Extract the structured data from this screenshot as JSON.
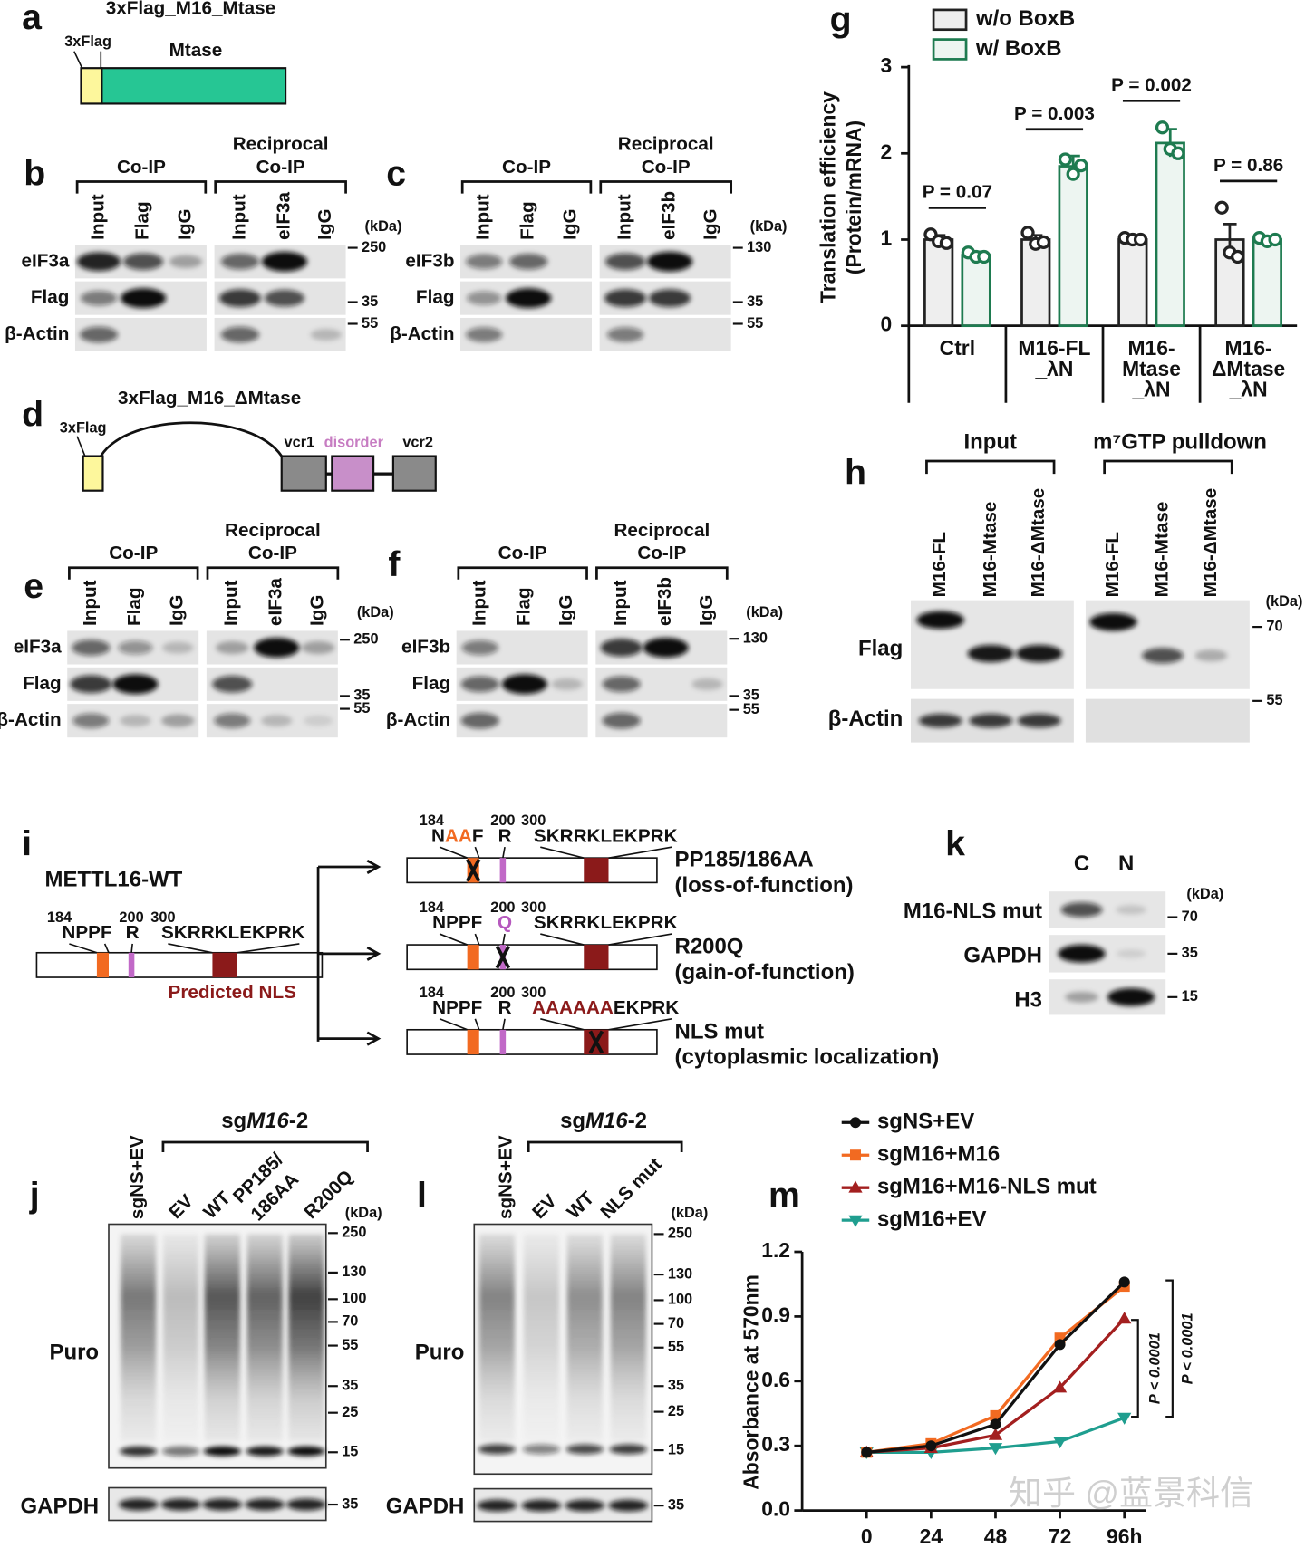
{
  "panel_labels": [
    "a",
    "b",
    "c",
    "d",
    "e",
    "f",
    "g",
    "h",
    "i",
    "j",
    "k",
    "l",
    "m"
  ],
  "panels": {
    "a": {
      "title": "3xFlag_M16_Mtase",
      "tag": "3xFlag",
      "domain": "Mtase"
    },
    "b": {
      "groups": [
        {
          "label": [
            "Co-IP"
          ],
          "lanes": [
            "Input",
            "Flag",
            "IgG"
          ]
        },
        {
          "label": [
            "Reciprocal",
            "Co-IP"
          ],
          "lanes": [
            "Input",
            "eIF3a",
            "IgG"
          ]
        }
      ],
      "rows": [
        "eIF3a",
        "Flag",
        "β-Actin"
      ],
      "unit": "(kDa)",
      "markers": [
        "250",
        "35",
        "55"
      ]
    },
    "c": {
      "groups": [
        {
          "label": [
            "Co-IP"
          ],
          "lanes": [
            "Input",
            "Flag",
            "IgG"
          ]
        },
        {
          "label": [
            "Reciprocal",
            "Co-IP"
          ],
          "lanes": [
            "Input",
            "eIF3b",
            "IgG"
          ]
        }
      ],
      "rows": [
        "eIF3b",
        "Flag",
        "β-Actin"
      ],
      "unit": "(kDa)",
      "markers": [
        "130",
        "35",
        "55"
      ]
    },
    "d": {
      "title": "3xFlag_M16_ΔMtase",
      "tag": "3xFlag",
      "domains": [
        "vcr1",
        "disorder",
        "vcr2"
      ]
    },
    "e": {
      "groups": [
        {
          "label": [
            "Co-IP"
          ],
          "lanes": [
            "Input",
            "Flag",
            "IgG"
          ]
        },
        {
          "label": [
            "Reciprocal",
            "Co-IP"
          ],
          "lanes": [
            "Input",
            "eIF3a",
            "IgG"
          ]
        }
      ],
      "rows": [
        "eIF3a",
        "Flag",
        "β-Actin"
      ],
      "unit": "(kDa)",
      "markers": [
        "250",
        "35",
        "55"
      ]
    },
    "f": {
      "groups": [
        {
          "label": [
            "Co-IP"
          ],
          "lanes": [
            "Input",
            "Flag",
            "IgG"
          ]
        },
        {
          "label": [
            "Reciprocal",
            "Co-IP"
          ],
          "lanes": [
            "Input",
            "eIF3b",
            "IgG"
          ]
        }
      ],
      "rows": [
        "eIF3b",
        "Flag",
        "β-Actin"
      ],
      "unit": "(kDa)",
      "markers": [
        "130",
        "35",
        "55"
      ]
    },
    "h": {
      "groups": [
        {
          "label": [
            "Input"
          ],
          "lanes": [
            "M16-FL",
            "M16-Mtase",
            "M16-ΔMtase"
          ]
        },
        {
          "label": [
            "m⁷GTP pulldown"
          ],
          "lanes": [
            "M16-FL",
            "M16-Mtase",
            "M16-ΔMtase"
          ]
        }
      ],
      "rows": [
        "Flag",
        "β-Actin"
      ],
      "unit": "(kDa)",
      "markers": [
        "70",
        "55"
      ]
    },
    "i": {
      "title": "METTL16-WT",
      "positions": [
        "184",
        "200",
        "300"
      ],
      "motifs": [
        [
          "NPPF"
        ],
        [
          "R"
        ],
        [
          "SKRRKLEKPRK"
        ]
      ],
      "nls": "Predicted NLS",
      "mutants": [
        {
          "positions": [
            "184",
            "200",
            "300"
          ],
          "motifs": [
            [
              "N",
              "AA",
              "F"
            ],
            [
              "R"
            ],
            [
              "SKRRKLEKPRK"
            ]
          ],
          "name": "PP185/186AA",
          "effect": "(loss-of-function)"
        },
        {
          "positions": [
            "184",
            "200",
            "300"
          ],
          "motifs": [
            [
              "NPPF"
            ],
            [
              "Q"
            ],
            [
              "SKRRKLEKPRK"
            ]
          ],
          "name": "R200Q",
          "effect": "(gain-of-function)"
        },
        {
          "positions": [
            "184",
            "200",
            "300"
          ],
          "motifs": [
            [
              "NPPF"
            ],
            [
              "R"
            ],
            [
              "AAAAAA",
              "EKPRK"
            ]
          ],
          "name": "NLS mut",
          "effect": "(cytoplasmic localization)"
        }
      ]
    },
    "j": {
      "group": [
        "sg",
        "M16",
        "-2"
      ],
      "lanes": [
        [
          "sgNS+EV"
        ],
        [
          "EV"
        ],
        [
          "WT"
        ],
        [
          "PP185/",
          "186AA"
        ],
        [
          "R200Q"
        ]
      ],
      "rows": [
        "Puro",
        "GAPDH"
      ],
      "unit": "(kDa)",
      "markers": [
        "250",
        "130",
        "100",
        "70",
        "55",
        "35",
        "25",
        "15",
        "35"
      ]
    },
    "k": {
      "lanes": [
        "C",
        "N"
      ],
      "rows": [
        "M16-NLS mut",
        "GAPDH",
        "H3"
      ],
      "unit": "(kDa)",
      "markers": [
        "70",
        "35",
        "15"
      ]
    },
    "l": {
      "group": [
        "sg",
        "M16",
        "-2"
      ],
      "lanes": [
        [
          "sgNS+EV"
        ],
        [
          "EV"
        ],
        [
          "WT"
        ],
        [
          "NLS mut"
        ]
      ],
      "rows": [
        "Puro",
        "GAPDH"
      ],
      "unit": "(kDa)",
      "markers": [
        "250",
        "130",
        "100",
        "70",
        "55",
        "35",
        "25",
        "15",
        "35"
      ]
    }
  },
  "chart_data": [
    {
      "type": "bar",
      "ylabel": [
        "Translation efficiency",
        "(Protein/mRNA)"
      ],
      "categories": [
        [
          "Ctrl"
        ],
        [
          "M16-FL",
          "_λN"
        ],
        [
          "M16-",
          "Mtase",
          "_λN"
        ],
        [
          "M16-",
          "ΔMtase",
          "_λN"
        ]
      ],
      "series": [
        {
          "name": "w/o BoxB",
          "color": "#222222",
          "values": [
            1.0,
            1.0,
            1.0,
            1.0
          ],
          "errors": [
            0.05,
            0.05,
            0.02,
            0.18
          ],
          "points": [
            [
              1.06,
              0.98,
              0.96
            ],
            [
              1.08,
              0.95,
              0.97
            ],
            [
              1.02,
              1.0,
              1.0
            ],
            [
              1.37,
              0.85,
              0.8
            ]
          ]
        },
        {
          "name": "w/ BoxB",
          "color": "#1e7b50",
          "values": [
            0.82,
            1.85,
            2.12,
            1.0
          ],
          "errors": [
            0.04,
            0.12,
            0.16,
            0.04
          ],
          "points": [
            [
              0.85,
              0.8,
              0.8
            ],
            [
              1.93,
              1.76,
              1.86
            ],
            [
              2.3,
              2.05,
              2.0
            ],
            [
              1.02,
              0.98,
              1.0
            ]
          ]
        }
      ],
      "annotations": [
        "P = 0.07",
        "P = 0.003",
        "P = 0.002",
        "P = 0.86"
      ],
      "ylim": [
        0,
        3
      ],
      "yticks": [
        0,
        1,
        2,
        3
      ]
    },
    {
      "type": "line",
      "ylabel": "Absorbance at 570nm",
      "x": [
        0,
        24,
        48,
        72,
        96
      ],
      "series": [
        {
          "name": "sgNS+EV",
          "color": "#111111",
          "marker": "circle",
          "values": [
            0.27,
            0.3,
            0.4,
            0.77,
            1.06
          ]
        },
        {
          "name": "sgM16+M16",
          "color": "#f26a21",
          "marker": "square",
          "values": [
            0.27,
            0.31,
            0.44,
            0.8,
            1.04
          ]
        },
        {
          "name": "sgM16+M16-NLS mut",
          "color": "#a31f1f",
          "marker": "triangle-up",
          "values": [
            0.27,
            0.29,
            0.35,
            0.57,
            0.89
          ]
        },
        {
          "name": "sgM16+EV",
          "color": "#1f9e8f",
          "marker": "triangle-down",
          "values": [
            0.27,
            0.27,
            0.29,
            0.32,
            0.43
          ]
        }
      ],
      "annotations": [
        "P < 0.0001",
        "P < 0.0001"
      ],
      "xlim": [
        -24,
        104
      ],
      "xticks": [
        0,
        24,
        48,
        72,
        {
          "value": 96,
          "label": "96h"
        }
      ],
      "ylim": [
        0,
        1.2
      ],
      "yticks": [
        {
          "value": 0,
          "label": "0.0"
        },
        0.3,
        0.6,
        0.9,
        1.2
      ]
    }
  ],
  "watermark": "知乎 @蓝景科信"
}
